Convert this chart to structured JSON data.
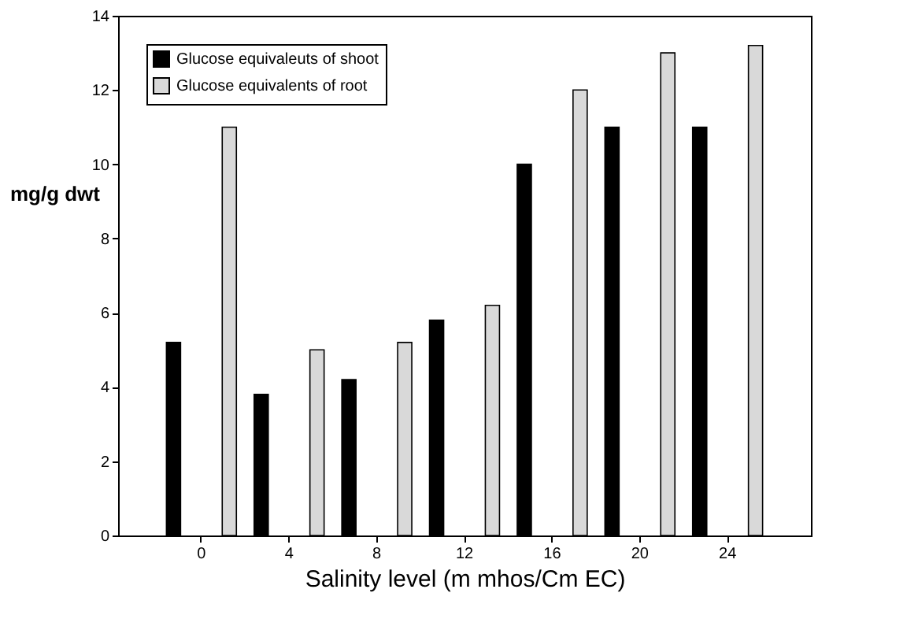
{
  "chart_data": {
    "type": "bar",
    "xlabel": "Salinity level (m mhos/Cm EC)",
    "ylabel": "mg/g dwt",
    "categories": [
      "0",
      "4",
      "8",
      "12",
      "16",
      "20",
      "24"
    ],
    "series": [
      {
        "name": "Glucose equivaleuts of shoot",
        "color": "#000000",
        "values": [
          5.2,
          3.8,
          4.2,
          5.8,
          10,
          11,
          11
        ]
      },
      {
        "name": "Glucose equivalents of root",
        "color": "#d9d9d9",
        "values": [
          11,
          5,
          5.2,
          6.2,
          12,
          13,
          13.2
        ]
      }
    ],
    "ylim": [
      0,
      14
    ],
    "yticks": [
      0,
      2,
      4,
      6,
      8,
      10,
      12,
      14
    ],
    "grid": false,
    "legend": "top left"
  }
}
